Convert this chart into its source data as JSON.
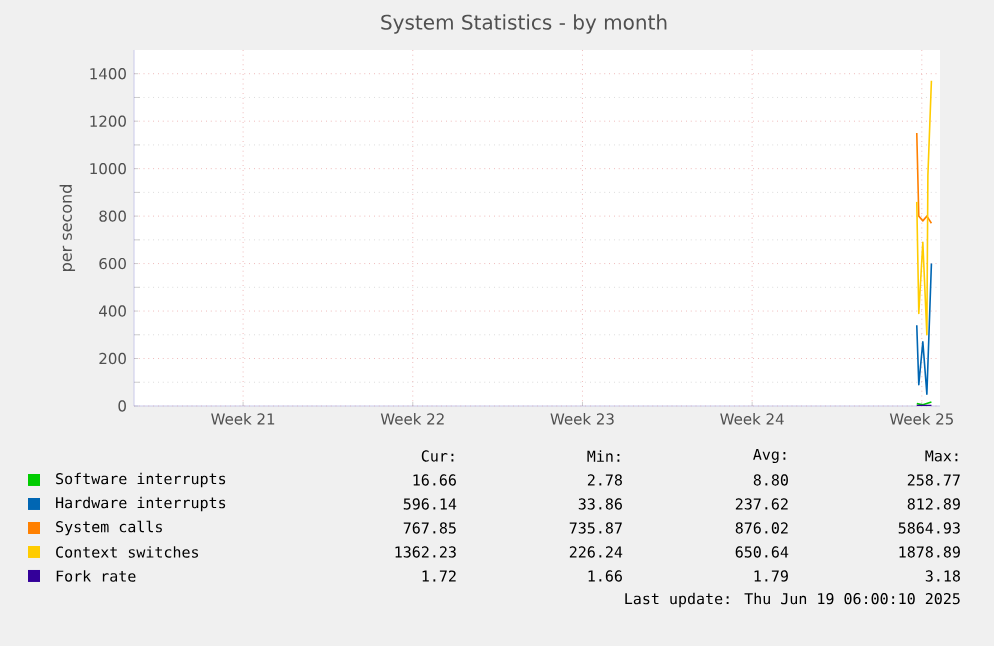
{
  "chart_data": {
    "type": "line",
    "title": "System Statistics - by month",
    "ylabel": "per second",
    "xlim": [
      "2025-05-17T00:00",
      "2025-06-19T06:00"
    ],
    "xticks": [
      {
        "value": "2025-05-21T12:00",
        "label": "Week 21"
      },
      {
        "value": "2025-05-28T12:00",
        "label": "Week 22"
      },
      {
        "value": "2025-06-04T12:00",
        "label": "Week 23"
      },
      {
        "value": "2025-06-11T12:00",
        "label": "Week 24"
      },
      {
        "value": "2025-06-18T12:00",
        "label": "Week 25"
      }
    ],
    "ylim": [
      0,
      1500
    ],
    "yticks": [
      0,
      200,
      400,
      600,
      800,
      1000,
      1200,
      1400
    ],
    "grid": true,
    "legend": "bottom",
    "marker": "none",
    "line_style": "solid",
    "series": [
      {
        "name": "Software interrupts",
        "color": "#00cc00",
        "x": [
          "2025-06-18T07:00",
          "2025-06-18T13:00",
          "2025-06-18T21:30"
        ],
        "values": [
          10,
          5,
          17
        ]
      },
      {
        "name": "Hardware interrupts",
        "color": "#0066b3",
        "x": [
          "2025-06-18T07:00",
          "2025-06-18T09:00",
          "2025-06-18T13:00",
          "2025-06-18T17:00",
          "2025-06-18T21:30"
        ],
        "values": [
          340,
          90,
          270,
          50,
          600
        ]
      },
      {
        "name": "System calls",
        "color": "#ff8000",
        "x": [
          "2025-06-18T07:00",
          "2025-06-18T09:00",
          "2025-06-18T13:00",
          "2025-06-18T17:00",
          "2025-06-18T21:30"
        ],
        "values": [
          1150,
          800,
          780,
          800,
          770
        ]
      },
      {
        "name": "Context switches",
        "color": "#ffcc00",
        "x": [
          "2025-06-18T07:00",
          "2025-06-18T09:00",
          "2025-06-18T13:00",
          "2025-06-18T17:00",
          "2025-06-18T18:00",
          "2025-06-18T21:30"
        ],
        "values": [
          860,
          390,
          690,
          300,
          970,
          1370
        ]
      },
      {
        "name": "Fork rate",
        "color": "#330099",
        "x": [
          "2025-06-18T07:00",
          "2025-06-18T21:30"
        ],
        "values": [
          2,
          2
        ]
      }
    ],
    "annotations": [
      "Cur:",
      "Min:",
      "Avg:",
      "Max:",
      "16.66",
      "2.78",
      "8.80",
      "258.77",
      "596.14",
      "33.86",
      "237.62",
      "812.89",
      "767.85",
      "735.87",
      "876.02",
      "5864.93",
      "1362.23",
      "226.24",
      "650.64",
      "1878.89",
      "1.72",
      "1.66",
      "1.79",
      "3.18",
      "Last update: Thu Jun 19 06:00:10 2025"
    ]
  }
}
